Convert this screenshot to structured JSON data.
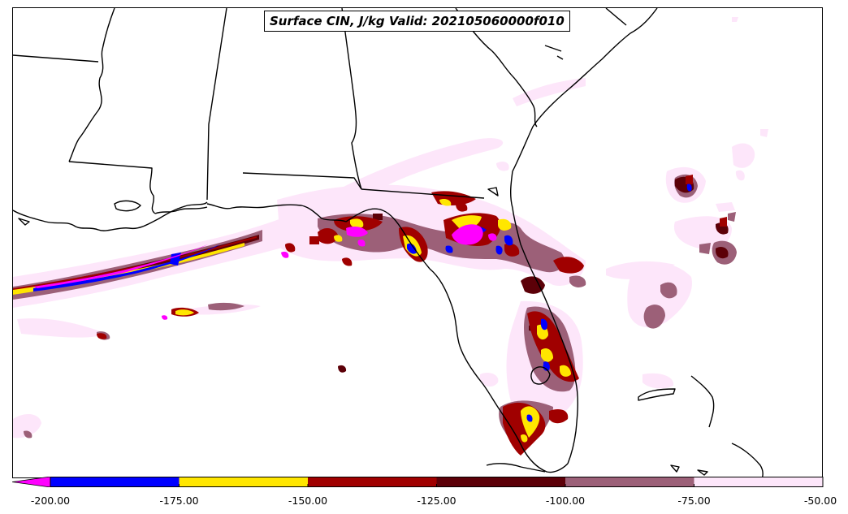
{
  "map": {
    "title": "Surface CIN, J/kg Valid: 202105060000f010"
  },
  "legend": {
    "ticks": [
      "-200.00",
      "-175.00",
      "-150.00",
      "-125.00",
      "-100.00",
      "-75.00",
      "-50.00"
    ],
    "bins": [
      {
        "range": "< -200",
        "color": "#ff00ff"
      },
      {
        "range": "-200 to -175",
        "color": "#0000ff"
      },
      {
        "range": "-175 to -150",
        "color": "#ffe600"
      },
      {
        "range": "-150 to -125",
        "color": "#a00000"
      },
      {
        "range": "-125 to -100",
        "color": "#5c0008"
      },
      {
        "range": "-100 to -75",
        "color": "#9c6078"
      },
      {
        "range": "-75 to -50",
        "color": "#fde6fa"
      }
    ]
  }
}
